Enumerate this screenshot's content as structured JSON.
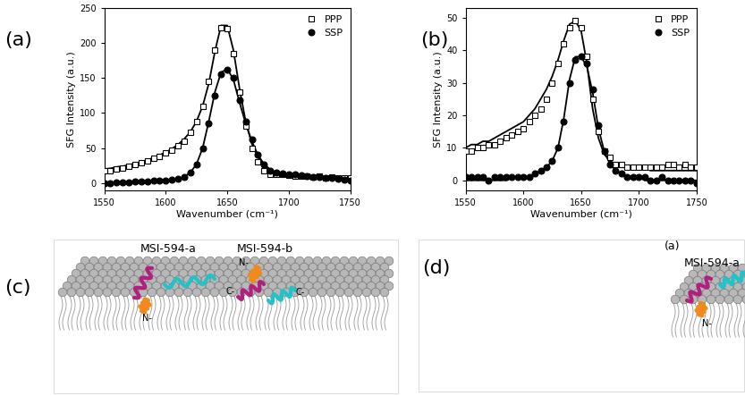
{
  "chart_data": [
    {
      "type": "scatter",
      "annotations": [
        "(a)"
      ],
      "x_label": "Wavenumber (cm⁻¹)",
      "y_label": "SFG Intensity (a.u.)",
      "xlim": [
        1550,
        1750
      ],
      "xticks": [
        1550,
        1600,
        1650,
        1700,
        1750
      ],
      "ylim": [
        -10,
        250
      ],
      "yticks": [
        0,
        50,
        100,
        150,
        200,
        250
      ],
      "legend": "upper right",
      "x": [
        1550,
        1555,
        1560,
        1565,
        1570,
        1575,
        1580,
        1585,
        1590,
        1595,
        1600,
        1605,
        1610,
        1615,
        1620,
        1625,
        1630,
        1635,
        1640,
        1645,
        1650,
        1655,
        1660,
        1665,
        1670,
        1675,
        1680,
        1685,
        1690,
        1695,
        1700,
        1705,
        1710,
        1715,
        1720,
        1725,
        1730,
        1735,
        1740,
        1745,
        1750
      ],
      "series": [
        {
          "name": "PPP",
          "type": "scatter",
          "marker": "open_square",
          "color": "#000000",
          "values": [
            17,
            18,
            20,
            22,
            24,
            26,
            29,
            32,
            35,
            38,
            43,
            47,
            53,
            60,
            72,
            88,
            110,
            145,
            190,
            222,
            220,
            185,
            130,
            82,
            50,
            30,
            18,
            13,
            12,
            12,
            11,
            10,
            10,
            10,
            9,
            10,
            8,
            9,
            8,
            8,
            7
          ]
        },
        {
          "name": "SSP",
          "type": "scatter",
          "marker": "circle",
          "color": "#000000",
          "values": [
            0,
            0,
            1,
            1,
            1,
            2,
            2,
            2,
            3,
            3,
            4,
            5,
            6,
            9,
            15,
            27,
            50,
            85,
            125,
            155,
            162,
            150,
            118,
            88,
            62,
            40,
            26,
            18,
            15,
            14,
            13,
            12,
            11,
            10,
            9,
            9,
            8,
            7,
            6,
            5,
            4
          ]
        },
        {
          "type": "line",
          "line_style": "solid",
          "color": "#000000",
          "values": [
            20,
            21,
            23,
            24,
            26,
            28,
            30,
            33,
            36,
            40,
            44,
            49,
            55,
            63,
            73,
            88,
            110,
            142,
            188,
            225,
            225,
            190,
            135,
            88,
            56,
            37,
            26,
            19,
            15,
            12,
            10,
            9,
            8,
            7,
            6,
            6,
            5,
            5,
            5,
            4,
            4
          ]
        },
        {
          "type": "line",
          "line_style": "solid",
          "color": "#000000",
          "values": [
            0,
            0,
            0,
            1,
            1,
            1,
            1,
            2,
            2,
            3,
            3,
            4,
            6,
            9,
            15,
            27,
            50,
            88,
            130,
            158,
            163,
            148,
            115,
            85,
            60,
            40,
            27,
            19,
            15,
            13,
            12,
            11,
            10,
            9,
            8,
            7,
            6,
            6,
            5,
            5,
            4
          ]
        }
      ]
    },
    {
      "type": "scatter",
      "annotations": [
        "(b)"
      ],
      "x_label": "Wavenumber (cm⁻¹)",
      "y_label": "SFG Intensity (a.u.)",
      "xlim": [
        1550,
        1750
      ],
      "xticks": [
        1550,
        1600,
        1650,
        1700,
        1750
      ],
      "ylim": [
        -3,
        53
      ],
      "yticks": [
        0,
        10,
        20,
        30,
        40,
        50
      ],
      "legend": "upper right",
      "x": [
        1550,
        1555,
        1560,
        1565,
        1570,
        1575,
        1580,
        1585,
        1590,
        1595,
        1600,
        1605,
        1610,
        1615,
        1620,
        1625,
        1630,
        1635,
        1640,
        1645,
        1650,
        1655,
        1660,
        1665,
        1670,
        1675,
        1680,
        1685,
        1690,
        1695,
        1700,
        1705,
        1710,
        1715,
        1720,
        1725,
        1730,
        1735,
        1740,
        1745,
        1750
      ],
      "series": [
        {
          "name": "PPP",
          "type": "scatter",
          "marker": "open_square",
          "color": "#000000",
          "values": [
            9,
            9,
            10,
            10,
            11,
            11,
            12,
            13,
            14,
            15,
            16,
            18,
            20,
            22,
            25,
            30,
            36,
            42,
            47,
            49,
            47,
            38,
            25,
            15,
            9,
            7,
            5,
            5,
            4,
            4,
            4,
            4,
            4,
            4,
            4,
            5,
            5,
            4,
            5,
            4,
            4
          ]
        },
        {
          "name": "SSP",
          "type": "scatter",
          "marker": "circle",
          "color": "#000000",
          "values": [
            1,
            1,
            1,
            1,
            0,
            1,
            1,
            1,
            1,
            1,
            1,
            1,
            2,
            3,
            4,
            6,
            10,
            18,
            30,
            37,
            38,
            36,
            28,
            17,
            9,
            5,
            3,
            2,
            1,
            1,
            1,
            1,
            0,
            0,
            1,
            0,
            0,
            0,
            0,
            0,
            -1
          ]
        },
        {
          "type": "line",
          "line_style": "solid",
          "color": "#000000",
          "values": [
            10,
            11,
            11,
            12,
            12,
            13,
            14,
            15,
            16,
            17,
            18,
            20,
            22,
            25,
            28,
            32,
            37,
            43,
            48,
            49,
            46,
            36,
            22,
            13,
            8,
            6,
            5,
            4,
            4,
            4,
            4,
            4,
            3,
            3,
            3,
            3,
            3,
            3,
            3,
            3,
            3
          ]
        },
        {
          "type": "line",
          "line_style": "solid",
          "color": "#000000",
          "values": [
            0,
            0,
            0,
            0,
            0,
            0,
            0,
            0,
            1,
            1,
            1,
            1,
            2,
            3,
            4,
            6,
            10,
            19,
            31,
            38,
            38,
            35,
            27,
            16,
            9,
            5,
            3,
            2,
            1,
            1,
            1,
            0,
            0,
            0,
            0,
            0,
            0,
            0,
            0,
            0,
            0
          ]
        }
      ]
    }
  ],
  "illustrations": [
    {
      "label": "(c)",
      "peptides": [
        {
          "name": "MSI-594-a",
          "n_label": "N-",
          "c_label": "C-"
        },
        {
          "name": "MSI-594-b",
          "n_label": "N-",
          "c_label": "C-"
        }
      ]
    },
    {
      "label": "(d)",
      "inset_label": "(a)",
      "peptides": [
        {
          "name": "MSI-594-a",
          "n_label": "N-"
        }
      ]
    }
  ]
}
